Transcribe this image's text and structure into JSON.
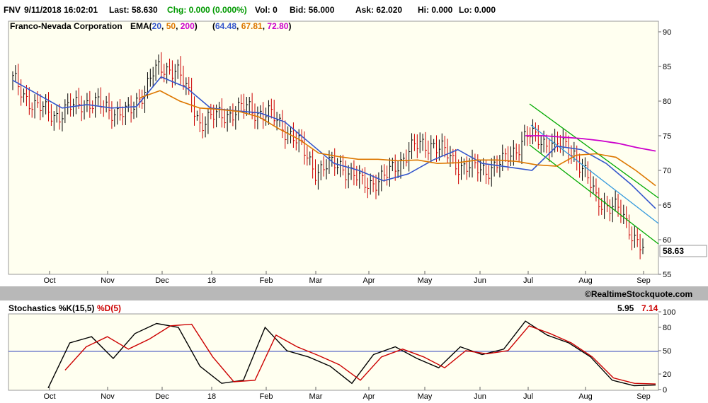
{
  "header": {
    "symbol": "FNV",
    "datetime": "9/11/2018 16:02:01",
    "last": "Last: 58.630",
    "chg": "Chg: 0.000 (0.000%)",
    "vol": "Vol: 0",
    "bid": "Bid: 56.000",
    "ask": "Ask: 62.020",
    "hi": "Hi: 0.000",
    "lo": "Lo: 0.000"
  },
  "price_panel": {
    "company": "Franco-Nevada Corporation",
    "ema_label": "EMA(",
    "ema_p1": "20",
    "ema_p2": "50",
    "ema_p3": "200",
    "ema_v1": "64.48",
    "ema_v2": "67.81",
    "ema_v3": "72.80",
    "last_tag": "58.63"
  },
  "watermark": "©RealtimeStockquote.com",
  "stoch_panel": {
    "title": "Stochastics %K(15,5)",
    "d_label": "%D(5)",
    "k_value": "5.95",
    "d_value": "7.14"
  },
  "colors": {
    "ema20": "#3355cc",
    "ema50": "#dd7700",
    "ema200": "#cc00cc",
    "chg": "#009900",
    "k_line": "#000000",
    "d_line": "#cc0000",
    "channel_green": "#00aa00",
    "channel_blue": "#3399dd"
  },
  "chart_data": [
    {
      "type": "line",
      "title": "Franco-Nevada Corporation",
      "x_axis": [
        "Oct",
        "Nov",
        "Dec",
        "18",
        "Feb",
        "Mar",
        "Apr",
        "May",
        "Jun",
        "Jul",
        "Aug",
        "Sep"
      ],
      "ylim": [
        55,
        90
      ],
      "y_ticks": [
        55,
        60,
        65,
        70,
        75,
        80,
        85,
        90
      ],
      "grid": false,
      "series": [
        {
          "name": "20",
          "values": [
            83,
            81,
            79,
            79.5,
            79,
            79.2,
            83.5,
            82,
            79,
            78.6,
            78.3,
            77,
            74,
            71,
            70,
            68.5,
            69.5,
            71.5,
            73,
            71,
            70.5,
            70,
            73.5,
            73,
            71,
            68,
            64.5
          ]
        },
        {
          "name": "50",
          "values": [
            80.5,
            81.5,
            80,
            79,
            78.8,
            78.5,
            77.7,
            76,
            74.5,
            72.5,
            72,
            71.6,
            71.6,
            71.4,
            71.5,
            71,
            71.1,
            71.5,
            71.5,
            71.3,
            70.8,
            70.6,
            72.2,
            72.4,
            71.9,
            70,
            67.8
          ]
        },
        {
          "name": "200",
          "values": [
            75,
            75,
            74.8,
            74.6,
            74.3,
            73.9,
            73.3,
            72.8
          ]
        }
      ],
      "close_approx": [
        83,
        79,
        78,
        80,
        79,
        78,
        84,
        85,
        77,
        78,
        79,
        78,
        75,
        70,
        71,
        68,
        69,
        73,
        74,
        71,
        70,
        71,
        75,
        74,
        73,
        66,
        64,
        58.63
      ]
    },
    {
      "type": "line",
      "title": "Stochastics %K(15,5)",
      "ylim": [
        0,
        100
      ],
      "y_ticks": [
        0,
        20,
        50,
        80,
        100
      ],
      "series": [
        {
          "name": "%K(15,5)",
          "values": [
            2,
            60,
            68,
            40,
            72,
            85,
            80,
            30,
            8,
            12,
            80,
            50,
            42,
            30,
            8,
            45,
            55,
            40,
            28,
            55,
            45,
            52,
            88,
            70,
            60,
            42,
            12,
            5,
            5.95
          ]
        },
        {
          "name": "%D(5)",
          "values": [
            25,
            55,
            68,
            52,
            65,
            82,
            84,
            42,
            10,
            12,
            70,
            55,
            44,
            32,
            12,
            42,
            52,
            42,
            28,
            50,
            46,
            50,
            82,
            72,
            60,
            42,
            15,
            8,
            7.14
          ]
        }
      ]
    }
  ]
}
